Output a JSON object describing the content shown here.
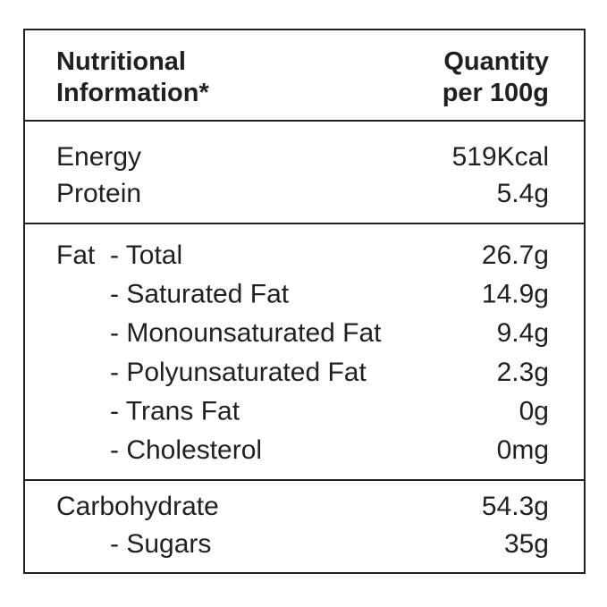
{
  "header": {
    "title": [
      "Nutritional",
      "Information*"
    ],
    "quantity": [
      "Quantity",
      "per 100g"
    ]
  },
  "sections": [
    {
      "rows": [
        {
          "label": "Energy",
          "value": "519Kcal"
        },
        {
          "label": "Protein",
          "value": "5.4g"
        }
      ]
    },
    {
      "rows": [
        {
          "label": "Fat",
          "sub": "- Total",
          "value": "26.7g"
        },
        {
          "sub": "- Saturated Fat",
          "value": "14.9g"
        },
        {
          "sub": "- Monounsaturated Fat",
          "value": "9.4g"
        },
        {
          "sub": "- Polyunsaturated Fat",
          "value": "2.3g"
        },
        {
          "sub": "- Trans Fat",
          "value": "0g"
        },
        {
          "sub": "- Cholesterol",
          "value": "0mg"
        }
      ]
    },
    {
      "rows": [
        {
          "label": "Carbohydrate",
          "value": "54.3g"
        },
        {
          "sub": "- Sugars",
          "value": "35g"
        }
      ]
    }
  ]
}
